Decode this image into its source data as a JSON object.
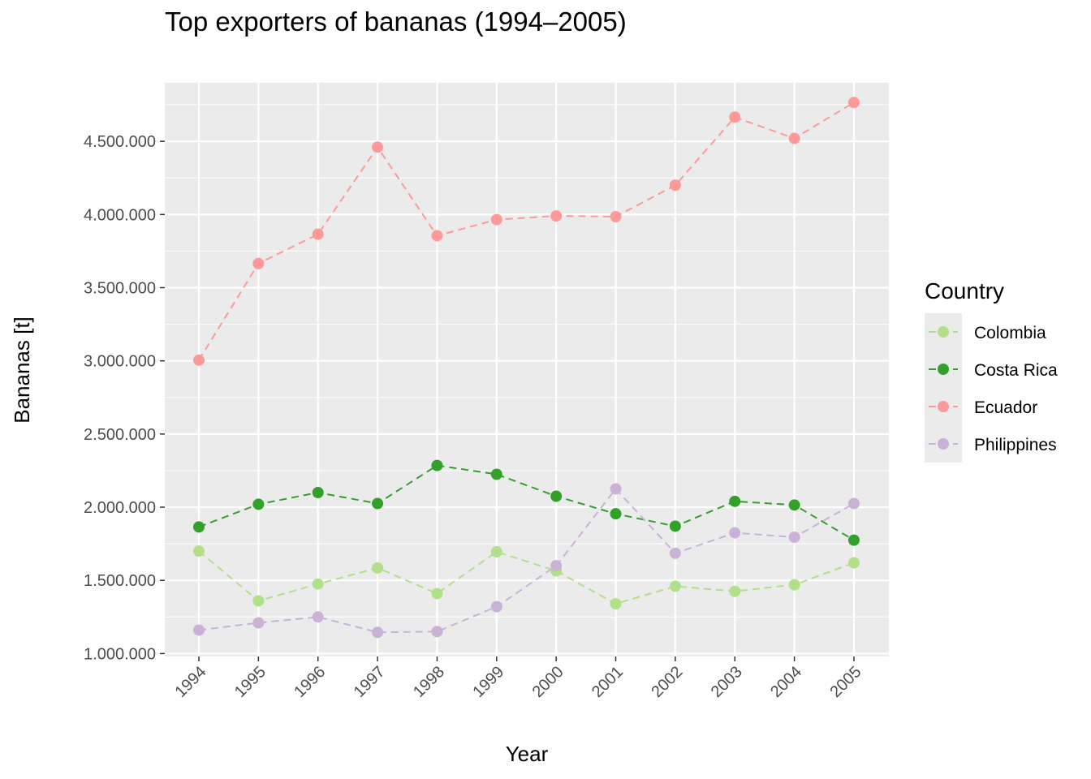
{
  "title": "Top exporters of bananas (1994–2005)",
  "chart_data": {
    "type": "line",
    "title": "Top exporters of bananas (1994–2005)",
    "xlabel": "Year",
    "ylabel": "Bananas [t]",
    "x": [
      "1994",
      "1995",
      "1996",
      "1997",
      "1998",
      "1999",
      "2000",
      "2001",
      "2002",
      "2003",
      "2004",
      "2005"
    ],
    "yticks": [
      1000000,
      1500000,
      2000000,
      2500000,
      3000000,
      3500000,
      4000000,
      4500000
    ],
    "ytick_labels": [
      "1.000.000",
      "1.500.000",
      "2.000.000",
      "2.500.000",
      "3.000.000",
      "3.500.000",
      "4.000.000",
      "4.500.000"
    ],
    "ylim": [
      980000,
      4900000
    ],
    "grid": true,
    "legend": {
      "title": "Country",
      "position": "right"
    },
    "series": [
      {
        "name": "Colombia",
        "color": "#b2df8a",
        "values": [
          1700000,
          1360000,
          1475000,
          1585000,
          1410000,
          1695000,
          1565000,
          1340000,
          1460000,
          1425000,
          1470000,
          1620000
        ]
      },
      {
        "name": "Costa Rica",
        "color": "#33a02c",
        "values": [
          1865000,
          2020000,
          2100000,
          2025000,
          2285000,
          2225000,
          2075000,
          1955000,
          1870000,
          2040000,
          2015000,
          1775000
        ]
      },
      {
        "name": "Ecuador",
        "color": "#fb9a99",
        "values": [
          3005000,
          3665000,
          3865000,
          4460000,
          3855000,
          3965000,
          3990000,
          3985000,
          4200000,
          4665000,
          4520000,
          4765000
        ]
      },
      {
        "name": "Philippines",
        "color": "#cab2d6",
        "values": [
          1160000,
          1210000,
          1250000,
          1145000,
          1150000,
          1320000,
          1600000,
          2125000,
          1685000,
          1825000,
          1795000,
          2025000
        ]
      }
    ]
  }
}
